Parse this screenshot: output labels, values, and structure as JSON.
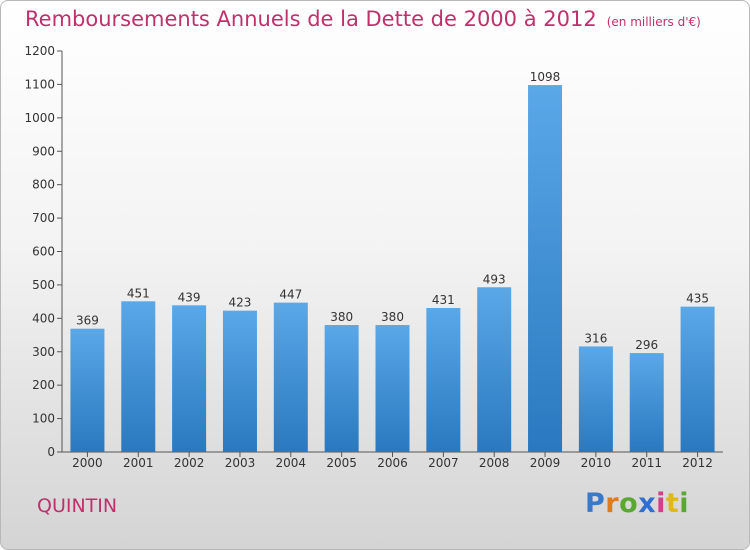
{
  "title": "Remboursements Annuels de la Dette de 2000 à 2012",
  "unit_note": "(en milliers d'€)",
  "city": "QUINTIN",
  "brand": {
    "text": "Proxiti",
    "letter_colors": [
      "#3a78c8",
      "#e07b1a",
      "#5aa832",
      "#2f6fd0",
      "#d43c8c",
      "#e0b81a",
      "#5aa832"
    ]
  },
  "colors": {
    "title": "#c0306b",
    "bar_top": "#5aa8e8",
    "bar_bottom": "#2a78bf",
    "axis": "#555555"
  },
  "chart_data": {
    "type": "bar",
    "categories": [
      "2000",
      "2001",
      "2002",
      "2003",
      "2004",
      "2005",
      "2006",
      "2007",
      "2008",
      "2009",
      "2010",
      "2011",
      "2012"
    ],
    "values": [
      369,
      451,
      439,
      423,
      447,
      380,
      380,
      431,
      493,
      1098,
      316,
      296,
      435
    ],
    "ylim": [
      0,
      1200
    ],
    "yticks": [
      0,
      100,
      200,
      300,
      400,
      500,
      600,
      700,
      800,
      900,
      1000,
      1100,
      1200
    ],
    "grid": false,
    "data_labels": true
  }
}
